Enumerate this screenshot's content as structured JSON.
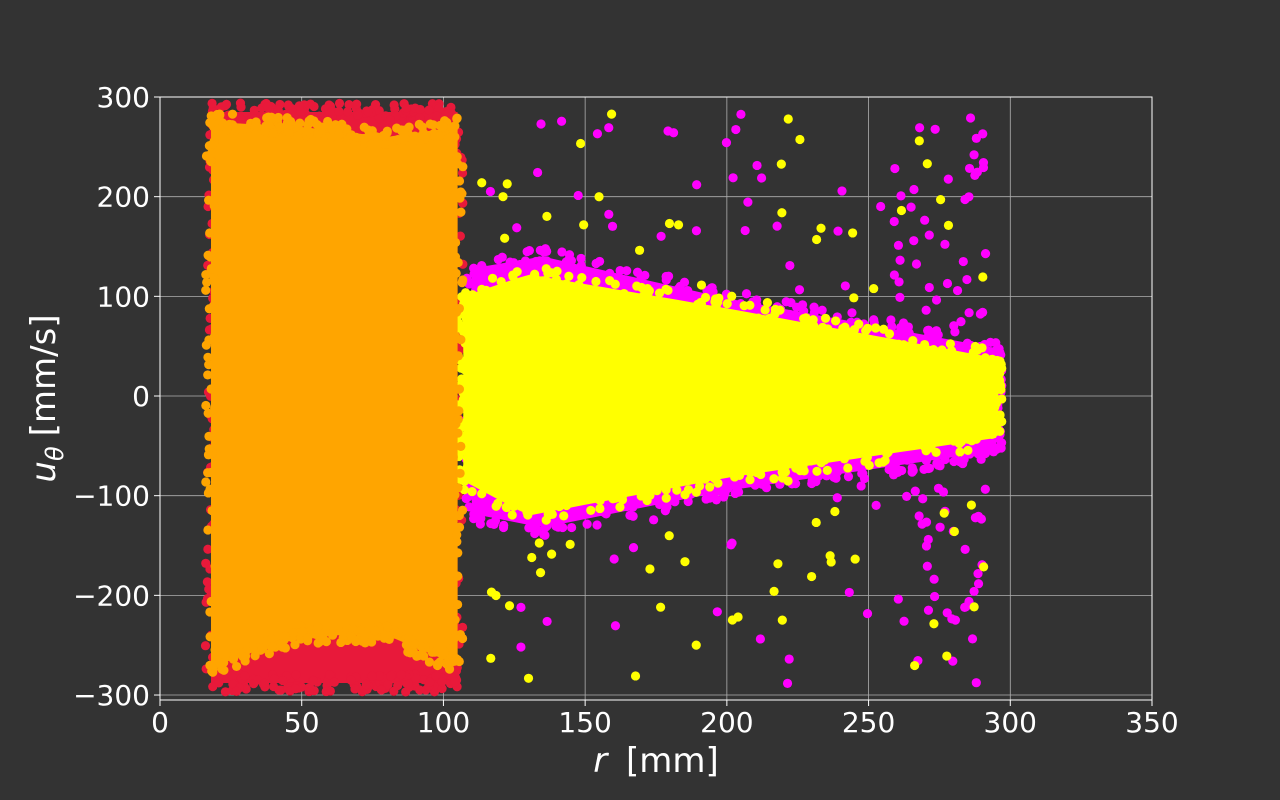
{
  "chart_data": {
    "type": "scatter",
    "title": "",
    "xlabel": {
      "symbol": "r",
      "unit": "[mm]"
    },
    "ylabel": {
      "symbol": "u",
      "subscript": "θ",
      "unit": "[mm/s]"
    },
    "xlim": [
      0,
      350
    ],
    "ylim": [
      -305,
      300
    ],
    "x_ticks": [
      {
        "value": 0,
        "label": "0"
      },
      {
        "value": 50,
        "label": "50"
      },
      {
        "value": 100,
        "label": "100"
      },
      {
        "value": 150,
        "label": "150"
      },
      {
        "value": 200,
        "label": "200"
      },
      {
        "value": 250,
        "label": "250"
      },
      {
        "value": 300,
        "label": "300"
      },
      {
        "value": 350,
        "label": "350"
      }
    ],
    "y_ticks": [
      {
        "value": 300,
        "label": "300"
      },
      {
        "value": 200,
        "label": "200"
      },
      {
        "value": 100,
        "label": "100"
      },
      {
        "value": 0,
        "label": "0"
      },
      {
        "value": -100,
        "label": "−100"
      },
      {
        "value": -200,
        "label": "−200"
      },
      {
        "value": -300,
        "label": "−300"
      }
    ],
    "grid": true,
    "background": "#333333",
    "series": [
      {
        "color": "#e8193a",
        "regions": [
          {
            "type": "band",
            "x_range": [
              18,
              105
            ],
            "y_upper": [
              [
                18,
                285
              ],
              [
                105,
                285
              ]
            ],
            "y_lower": [
              [
                18,
                -288
              ],
              [
                105,
                -288
              ]
            ]
          }
        ]
      },
      {
        "color": "#ff00ff",
        "regions": [
          {
            "type": "band",
            "x_range": [
              110,
              295
            ],
            "y_upper": [
              [
                110,
                128
              ],
              [
                135,
                140
              ],
              [
                200,
                98
              ],
              [
                295,
                48
              ]
            ],
            "y_lower": [
              [
                110,
                -118
              ],
              [
                135,
                -132
              ],
              [
                200,
                -95
              ],
              [
                295,
                -55
              ]
            ]
          },
          {
            "type": "sparse",
            "x_range": [
              112,
              292
            ],
            "y_range": [
              -290,
              285
            ]
          },
          {
            "type": "sparse",
            "x_range": [
              258,
              292
            ],
            "y_range": [
              -275,
              280
            ]
          }
        ]
      },
      {
        "color": "#ffff00",
        "regions": [
          {
            "type": "band",
            "x_range": [
              107,
              295
            ],
            "y_upper": [
              [
                107,
                100
              ],
              [
                130,
                122
              ],
              [
                200,
                88
              ],
              [
                295,
                38
              ]
            ],
            "y_lower": [
              [
                107,
                -85
              ],
              [
                130,
                -120
              ],
              [
                200,
                -82
              ],
              [
                295,
                -42
              ]
            ]
          },
          {
            "type": "sparse",
            "x_range": [
              112,
              292
            ],
            "y_range": [
              -285,
              285
            ]
          }
        ]
      },
      {
        "color": "#ffa500",
        "regions": [
          {
            "type": "band",
            "x_range": [
              18,
              105
            ],
            "y_upper": [
              [
                18,
                275
              ],
              [
                50,
                270
              ],
              [
                80,
                260
              ],
              [
                105,
                270
              ]
            ],
            "y_lower": [
              [
                18,
                -272
              ],
              [
                50,
                -240
              ],
              [
                80,
                -240
              ],
              [
                105,
                -270
              ]
            ]
          }
        ]
      }
    ]
  }
}
